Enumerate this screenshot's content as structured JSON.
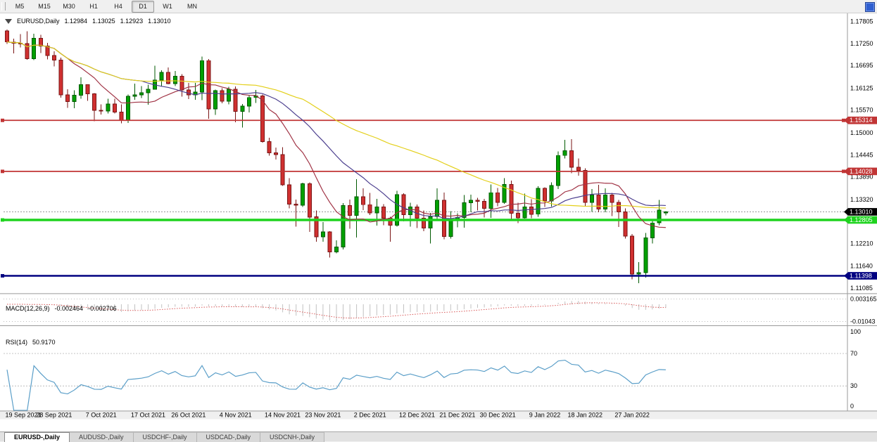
{
  "toolbar": {
    "timeframes": [
      "M5",
      "M15",
      "M30",
      "H1",
      "H4",
      "D1",
      "W1",
      "MN"
    ],
    "active_timeframe": "D1"
  },
  "info_line": {
    "symbol_period": "EURUSD,Daily",
    "open": "1.12984",
    "high": "1.13025",
    "low": "1.12923",
    "close": "1.13010"
  },
  "y_axis_labels": [
    "1.17805",
    "1.17250",
    "1.16695",
    "1.16125",
    "1.15570",
    "1.15000",
    "1.14445",
    "1.13890",
    "1.13320",
    "1.12210",
    "1.11640",
    "1.11085"
  ],
  "price_markers": [
    {
      "label": "1.15314",
      "price": 1.15314,
      "line_color": "#c13535",
      "label_bg": "#c13535",
      "label_fg": "#ffffff",
      "thickness": 1.8,
      "right_cap": true
    },
    {
      "label": "1.14028",
      "price": 1.14028,
      "line_color": "#c13535",
      "label_bg": "#c13535",
      "label_fg": "#ffffff",
      "thickness": 1.8,
      "right_cap": true
    },
    {
      "label": "1.12805",
      "price": 1.12805,
      "line_color": "#1ed31e",
      "label_bg": "#1ed31e",
      "label_fg": "#ffffff",
      "thickness": 3.5,
      "right_cap": false
    },
    {
      "label": "1.11398",
      "price": 1.11398,
      "line_color": "#000080",
      "label_bg": "#000080",
      "label_fg": "#ffffff",
      "thickness": 2.5,
      "right_cap": false
    }
  ],
  "current_price": {
    "label": "1.13010",
    "price": 1.1301,
    "label_bg": "#000000",
    "label_fg": "#ffffff",
    "line_color": "#8a8a8a"
  },
  "x_axis_labels": [
    {
      "text": "19 Sep 2021",
      "bar": 1
    },
    {
      "text": "28 Sep 2021",
      "bar": 7
    },
    {
      "text": "7 Oct 2021",
      "bar": 14
    },
    {
      "text": "17 Oct 2021",
      "bar": 21
    },
    {
      "text": "26 Oct 2021",
      "bar": 27
    },
    {
      "text": "4 Nov 2021",
      "bar": 34
    },
    {
      "text": "14 Nov 2021",
      "bar": 41
    },
    {
      "text": "23 Nov 2021",
      "bar": 47
    },
    {
      "text": "2 Dec 2021",
      "bar": 54
    },
    {
      "text": "12 Dec 2021",
      "bar": 61
    },
    {
      "text": "21 Dec 2021",
      "bar": 67
    },
    {
      "text": "30 Dec 2021",
      "bar": 73
    },
    {
      "text": "9 Jan 2022",
      "bar": 80
    },
    {
      "text": "18 Jan 2022",
      "bar": 86
    },
    {
      "text": "27 Jan 2022",
      "bar": 93
    }
  ],
  "macd_panel": {
    "title": "MACD(12,26,9)",
    "value": "-0.002464",
    "signal_value": "-0.002706",
    "scale": [
      "0.003165",
      "-0.01043"
    ],
    "histogram_color": "#c2c2c2",
    "signal_color": "#d95555"
  },
  "rsi_panel": {
    "title": "RSI(14)",
    "value": "50.9170",
    "scale": [
      "100",
      "70",
      "30",
      "0"
    ],
    "line_color": "#5a9ec8"
  },
  "tabs": [
    "EURUSD-,Daily",
    "AUDUSD-,Daily",
    "USDCHF-,Daily",
    "USDCAD-,Daily",
    "USDCNH-,Daily"
  ],
  "active_tab": "EURUSD-,Daily",
  "style": {
    "bull": "#00a000",
    "bull_border": "#005a00",
    "bear": "#d03030",
    "bear_border": "#7a1515",
    "separator": "#9a9a9a",
    "axis_text": "#000000",
    "level_dotted": "#bcbcbc"
  },
  "chart_data": {
    "type": "candlestick-ohlc",
    "symbol": "EURUSD",
    "timeframe": "Daily",
    "y_range": [
      1.105,
      1.179
    ],
    "indicators": [
      {
        "name": "MACD",
        "params": [
          12,
          26,
          9
        ],
        "last_values": [
          -0.002464,
          -0.002706
        ]
      },
      {
        "name": "RSI",
        "params": [
          14
        ],
        "last_value": 50.917
      }
    ],
    "overlays": [
      {
        "name": "ma-fast",
        "type": "sma",
        "period": 10,
        "color": "#a03244"
      },
      {
        "name": "ma-mid",
        "type": "sma",
        "period": 21,
        "color": "#4b3e8e"
      },
      {
        "name": "ma-slow",
        "type": "sma",
        "period": 45,
        "color": "#e3cf18"
      }
    ],
    "dates": [
      "2021.09.17",
      "2021.09.20",
      "2021.09.21",
      "2021.09.22",
      "2021.09.23",
      "2021.09.24",
      "2021.09.27",
      "2021.09.28",
      "2021.09.29",
      "2021.09.30",
      "2021.10.01",
      "2021.10.04",
      "2021.10.05",
      "2021.10.06",
      "2021.10.07",
      "2021.10.08",
      "2021.10.11",
      "2021.10.12",
      "2021.10.13",
      "2021.10.14",
      "2021.10.15",
      "2021.10.18",
      "2021.10.19",
      "2021.10.20",
      "2021.10.21",
      "2021.10.22",
      "2021.10.25",
      "2021.10.26",
      "2021.10.27",
      "2021.10.28",
      "2021.10.29",
      "2021.11.01",
      "2021.11.02",
      "2021.11.03",
      "2021.11.04",
      "2021.11.05",
      "2021.11.08",
      "2021.11.09",
      "2021.11.10",
      "2021.11.11",
      "2021.11.12",
      "2021.11.15",
      "2021.11.16",
      "2021.11.17",
      "2021.11.18",
      "2021.11.19",
      "2021.11.22",
      "2021.11.23",
      "2021.11.24",
      "2021.11.25",
      "2021.11.26",
      "2021.11.29",
      "2021.11.30",
      "2021.12.01",
      "2021.12.02",
      "2021.12.03",
      "2021.12.06",
      "2021.12.07",
      "2021.12.08",
      "2021.12.09",
      "2021.12.10",
      "2021.12.13",
      "2021.12.14",
      "2021.12.15",
      "2021.12.16",
      "2021.12.17",
      "2021.12.20",
      "2021.12.21",
      "2021.12.22",
      "2021.12.23",
      "2021.12.27",
      "2021.12.28",
      "2021.12.29",
      "2021.12.30",
      "2021.12.31",
      "2022.01.03",
      "2022.01.04",
      "2022.01.05",
      "2022.01.06",
      "2022.01.07",
      "2022.01.10",
      "2022.01.11",
      "2022.01.12",
      "2022.01.13",
      "2022.01.14",
      "2022.01.17",
      "2022.01.18",
      "2022.01.19",
      "2022.01.20",
      "2022.01.21",
      "2022.01.24",
      "2022.01.25",
      "2022.01.26",
      "2022.01.27",
      "2022.01.28",
      "2022.01.31",
      "2022.02.01",
      "2022.02.02",
      "2022.02.03"
    ],
    "ohlc": [
      [
        1.1757,
        1.176,
        1.1724,
        1.1729
      ],
      [
        1.1729,
        1.1737,
        1.17,
        1.1726
      ],
      [
        1.1726,
        1.1749,
        1.1715,
        1.1725
      ],
      [
        1.1725,
        1.1756,
        1.1684,
        1.1687
      ],
      [
        1.1687,
        1.175,
        1.1683,
        1.1738
      ],
      [
        1.1738,
        1.1747,
        1.1701,
        1.1719
      ],
      [
        1.1719,
        1.1727,
        1.1685,
        1.1695
      ],
      [
        1.1695,
        1.1705,
        1.1667,
        1.1683
      ],
      [
        1.1683,
        1.169,
        1.1589,
        1.1596
      ],
      [
        1.1596,
        1.161,
        1.1563,
        1.1579
      ],
      [
        1.1579,
        1.1607,
        1.1562,
        1.1595
      ],
      [
        1.1595,
        1.164,
        1.1586,
        1.1621
      ],
      [
        1.1621,
        1.1622,
        1.1581,
        1.1598
      ],
      [
        1.1598,
        1.16,
        1.1529,
        1.1557
      ],
      [
        1.1557,
        1.1572,
        1.1546,
        1.1555
      ],
      [
        1.1555,
        1.1586,
        1.1549,
        1.1573
      ],
      [
        1.1573,
        1.1586,
        1.1549,
        1.1552
      ],
      [
        1.1552,
        1.1572,
        1.1524,
        1.1531
      ],
      [
        1.1531,
        1.1597,
        1.1525,
        1.1592
      ],
      [
        1.1592,
        1.1624,
        1.1583,
        1.1596
      ],
      [
        1.1596,
        1.1618,
        1.1588,
        1.1601
      ],
      [
        1.1601,
        1.1621,
        1.1571,
        1.161
      ],
      [
        1.161,
        1.1669,
        1.1609,
        1.1633
      ],
      [
        1.1633,
        1.1658,
        1.1617,
        1.1652
      ],
      [
        1.1652,
        1.1665,
        1.1622,
        1.1624
      ],
      [
        1.1624,
        1.1656,
        1.1618,
        1.1643
      ],
      [
        1.1643,
        1.1648,
        1.1591,
        1.1608
      ],
      [
        1.1608,
        1.1626,
        1.1585,
        1.1596
      ],
      [
        1.1596,
        1.1626,
        1.1583,
        1.1603
      ],
      [
        1.1603,
        1.1692,
        1.1582,
        1.1682
      ],
      [
        1.1682,
        1.1686,
        1.1535,
        1.156
      ],
      [
        1.156,
        1.1609,
        1.1545,
        1.1606
      ],
      [
        1.1606,
        1.1612,
        1.1574,
        1.158
      ],
      [
        1.158,
        1.1616,
        1.1572,
        1.161
      ],
      [
        1.161,
        1.1617,
        1.1527,
        1.1554
      ],
      [
        1.1554,
        1.1573,
        1.1513,
        1.1567
      ],
      [
        1.1567,
        1.1596,
        1.1551,
        1.1589
      ],
      [
        1.1589,
        1.1608,
        1.1575,
        1.1593
      ],
      [
        1.1593,
        1.1597,
        1.1475,
        1.1478
      ],
      [
        1.1478,
        1.1488,
        1.1443,
        1.145
      ],
      [
        1.145,
        1.1463,
        1.1433,
        1.1445
      ],
      [
        1.1445,
        1.1464,
        1.1366,
        1.1369
      ],
      [
        1.1369,
        1.1386,
        1.131,
        1.132
      ],
      [
        1.132,
        1.1332,
        1.1264,
        1.1318
      ],
      [
        1.1318,
        1.1374,
        1.1313,
        1.1372
      ],
      [
        1.1372,
        1.1375,
        1.125,
        1.1288
      ],
      [
        1.1288,
        1.1304,
        1.1226,
        1.1238
      ],
      [
        1.1238,
        1.1275,
        1.1226,
        1.125
      ],
      [
        1.125,
        1.1252,
        1.1186,
        1.12
      ],
      [
        1.12,
        1.1229,
        1.1196,
        1.1212
      ],
      [
        1.1212,
        1.1323,
        1.1206,
        1.1317
      ],
      [
        1.1317,
        1.1332,
        1.1258,
        1.1292
      ],
      [
        1.1292,
        1.1383,
        1.1236,
        1.1339
      ],
      [
        1.1339,
        1.136,
        1.1305,
        1.1319
      ],
      [
        1.1319,
        1.1349,
        1.1293,
        1.1298
      ],
      [
        1.1298,
        1.1334,
        1.1266,
        1.1313
      ],
      [
        1.1313,
        1.132,
        1.1267,
        1.1285
      ],
      [
        1.1285,
        1.1288,
        1.1226,
        1.1267
      ],
      [
        1.1267,
        1.1354,
        1.1264,
        1.1344
      ],
      [
        1.1344,
        1.1348,
        1.1277,
        1.1294
      ],
      [
        1.1294,
        1.1324,
        1.1264,
        1.1313
      ],
      [
        1.1313,
        1.1319,
        1.126,
        1.1285
      ],
      [
        1.1285,
        1.1304,
        1.1252,
        1.126
      ],
      [
        1.126,
        1.1298,
        1.1221,
        1.1289
      ],
      [
        1.1289,
        1.136,
        1.128,
        1.133
      ],
      [
        1.133,
        1.135,
        1.1232,
        1.1239
      ],
      [
        1.1239,
        1.1303,
        1.1234,
        1.128
      ],
      [
        1.128,
        1.1297,
        1.1262,
        1.1287
      ],
      [
        1.1287,
        1.1343,
        1.1261,
        1.1324
      ],
      [
        1.1324,
        1.1344,
        1.13,
        1.133
      ],
      [
        1.133,
        1.1336,
        1.1304,
        1.1327
      ],
      [
        1.1327,
        1.1334,
        1.1287,
        1.131
      ],
      [
        1.131,
        1.137,
        1.1286,
        1.1349
      ],
      [
        1.1349,
        1.1361,
        1.1315,
        1.1325
      ],
      [
        1.1325,
        1.1386,
        1.1321,
        1.137
      ],
      [
        1.137,
        1.138,
        1.1279,
        1.1297
      ],
      [
        1.1297,
        1.1324,
        1.1272,
        1.1286
      ],
      [
        1.1286,
        1.1347,
        1.1284,
        1.1313
      ],
      [
        1.1313,
        1.1333,
        1.1285,
        1.1295
      ],
      [
        1.1295,
        1.1365,
        1.1288,
        1.136
      ],
      [
        1.136,
        1.1363,
        1.1313,
        1.1328
      ],
      [
        1.1328,
        1.1375,
        1.1314,
        1.1367
      ],
      [
        1.1367,
        1.1453,
        1.1358,
        1.1443
      ],
      [
        1.1443,
        1.1482,
        1.1435,
        1.1455
      ],
      [
        1.1455,
        1.1484,
        1.1398,
        1.1413
      ],
      [
        1.1413,
        1.1435,
        1.1392,
        1.1405
      ],
      [
        1.1405,
        1.1411,
        1.1314,
        1.1325
      ],
      [
        1.1325,
        1.1358,
        1.1301,
        1.1343
      ],
      [
        1.1343,
        1.1369,
        1.13,
        1.1308
      ],
      [
        1.1308,
        1.136,
        1.13,
        1.1343
      ],
      [
        1.1343,
        1.1349,
        1.129,
        1.1325
      ],
      [
        1.1325,
        1.1331,
        1.1263,
        1.1301
      ],
      [
        1.1301,
        1.131,
        1.1234,
        1.124
      ],
      [
        1.124,
        1.1245,
        1.1131,
        1.1144
      ],
      [
        1.1144,
        1.1174,
        1.1121,
        1.1148
      ],
      [
        1.1148,
        1.1248,
        1.1135,
        1.1235
      ],
      [
        1.1235,
        1.1279,
        1.1221,
        1.1273
      ],
      [
        1.1273,
        1.1331,
        1.1267,
        1.1305
      ],
      [
        1.12984,
        1.13025,
        1.12923,
        1.1301
      ]
    ]
  }
}
